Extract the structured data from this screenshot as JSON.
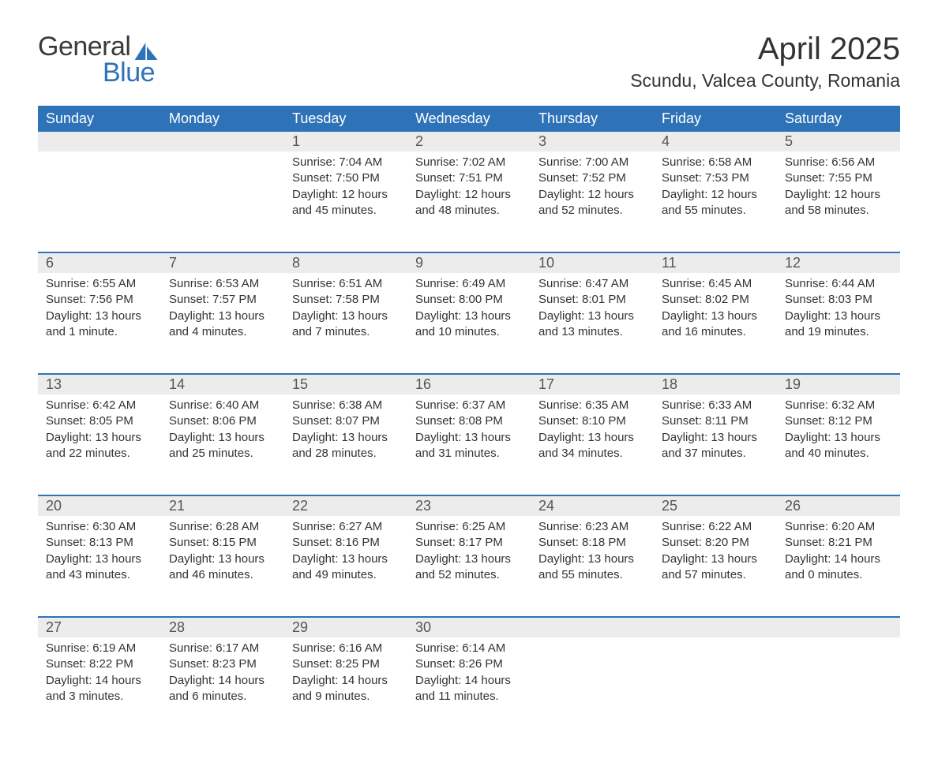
{
  "logo": {
    "word1": "General",
    "word2": "Blue"
  },
  "title": "April 2025",
  "location": "Scundu, Valcea County, Romania",
  "colors": {
    "header_bg": "#2e72b8",
    "header_text": "#ffffff",
    "daynum_bg": "#ececec",
    "row_divider": "#2e72b8",
    "body_text": "#333333",
    "logo_gray": "#3a3a3a",
    "logo_blue": "#2e72b8",
    "page_bg": "#ffffff"
  },
  "typography": {
    "title_fontsize": 40,
    "location_fontsize": 23,
    "header_fontsize": 18,
    "daynum_fontsize": 18,
    "cell_fontsize": 15,
    "font_family": "Arial"
  },
  "day_headers": [
    "Sunday",
    "Monday",
    "Tuesday",
    "Wednesday",
    "Thursday",
    "Friday",
    "Saturday"
  ],
  "weeks": [
    [
      null,
      null,
      {
        "n": "1",
        "sunrise": "7:04 AM",
        "sunset": "7:50 PM",
        "daylight": "12 hours and 45 minutes."
      },
      {
        "n": "2",
        "sunrise": "7:02 AM",
        "sunset": "7:51 PM",
        "daylight": "12 hours and 48 minutes."
      },
      {
        "n": "3",
        "sunrise": "7:00 AM",
        "sunset": "7:52 PM",
        "daylight": "12 hours and 52 minutes."
      },
      {
        "n": "4",
        "sunrise": "6:58 AM",
        "sunset": "7:53 PM",
        "daylight": "12 hours and 55 minutes."
      },
      {
        "n": "5",
        "sunrise": "6:56 AM",
        "sunset": "7:55 PM",
        "daylight": "12 hours and 58 minutes."
      }
    ],
    [
      {
        "n": "6",
        "sunrise": "6:55 AM",
        "sunset": "7:56 PM",
        "daylight": "13 hours and 1 minute."
      },
      {
        "n": "7",
        "sunrise": "6:53 AM",
        "sunset": "7:57 PM",
        "daylight": "13 hours and 4 minutes."
      },
      {
        "n": "8",
        "sunrise": "6:51 AM",
        "sunset": "7:58 PM",
        "daylight": "13 hours and 7 minutes."
      },
      {
        "n": "9",
        "sunrise": "6:49 AM",
        "sunset": "8:00 PM",
        "daylight": "13 hours and 10 minutes."
      },
      {
        "n": "10",
        "sunrise": "6:47 AM",
        "sunset": "8:01 PM",
        "daylight": "13 hours and 13 minutes."
      },
      {
        "n": "11",
        "sunrise": "6:45 AM",
        "sunset": "8:02 PM",
        "daylight": "13 hours and 16 minutes."
      },
      {
        "n": "12",
        "sunrise": "6:44 AM",
        "sunset": "8:03 PM",
        "daylight": "13 hours and 19 minutes."
      }
    ],
    [
      {
        "n": "13",
        "sunrise": "6:42 AM",
        "sunset": "8:05 PM",
        "daylight": "13 hours and 22 minutes."
      },
      {
        "n": "14",
        "sunrise": "6:40 AM",
        "sunset": "8:06 PM",
        "daylight": "13 hours and 25 minutes."
      },
      {
        "n": "15",
        "sunrise": "6:38 AM",
        "sunset": "8:07 PM",
        "daylight": "13 hours and 28 minutes."
      },
      {
        "n": "16",
        "sunrise": "6:37 AM",
        "sunset": "8:08 PM",
        "daylight": "13 hours and 31 minutes."
      },
      {
        "n": "17",
        "sunrise": "6:35 AM",
        "sunset": "8:10 PM",
        "daylight": "13 hours and 34 minutes."
      },
      {
        "n": "18",
        "sunrise": "6:33 AM",
        "sunset": "8:11 PM",
        "daylight": "13 hours and 37 minutes."
      },
      {
        "n": "19",
        "sunrise": "6:32 AM",
        "sunset": "8:12 PM",
        "daylight": "13 hours and 40 minutes."
      }
    ],
    [
      {
        "n": "20",
        "sunrise": "6:30 AM",
        "sunset": "8:13 PM",
        "daylight": "13 hours and 43 minutes."
      },
      {
        "n": "21",
        "sunrise": "6:28 AM",
        "sunset": "8:15 PM",
        "daylight": "13 hours and 46 minutes."
      },
      {
        "n": "22",
        "sunrise": "6:27 AM",
        "sunset": "8:16 PM",
        "daylight": "13 hours and 49 minutes."
      },
      {
        "n": "23",
        "sunrise": "6:25 AM",
        "sunset": "8:17 PM",
        "daylight": "13 hours and 52 minutes."
      },
      {
        "n": "24",
        "sunrise": "6:23 AM",
        "sunset": "8:18 PM",
        "daylight": "13 hours and 55 minutes."
      },
      {
        "n": "25",
        "sunrise": "6:22 AM",
        "sunset": "8:20 PM",
        "daylight": "13 hours and 57 minutes."
      },
      {
        "n": "26",
        "sunrise": "6:20 AM",
        "sunset": "8:21 PM",
        "daylight": "14 hours and 0 minutes."
      }
    ],
    [
      {
        "n": "27",
        "sunrise": "6:19 AM",
        "sunset": "8:22 PM",
        "daylight": "14 hours and 3 minutes."
      },
      {
        "n": "28",
        "sunrise": "6:17 AM",
        "sunset": "8:23 PM",
        "daylight": "14 hours and 6 minutes."
      },
      {
        "n": "29",
        "sunrise": "6:16 AM",
        "sunset": "8:25 PM",
        "daylight": "14 hours and 9 minutes."
      },
      {
        "n": "30",
        "sunrise": "6:14 AM",
        "sunset": "8:26 PM",
        "daylight": "14 hours and 11 minutes."
      },
      null,
      null,
      null
    ]
  ],
  "labels": {
    "sunrise": "Sunrise: ",
    "sunset": "Sunset: ",
    "daylight": "Daylight: "
  }
}
